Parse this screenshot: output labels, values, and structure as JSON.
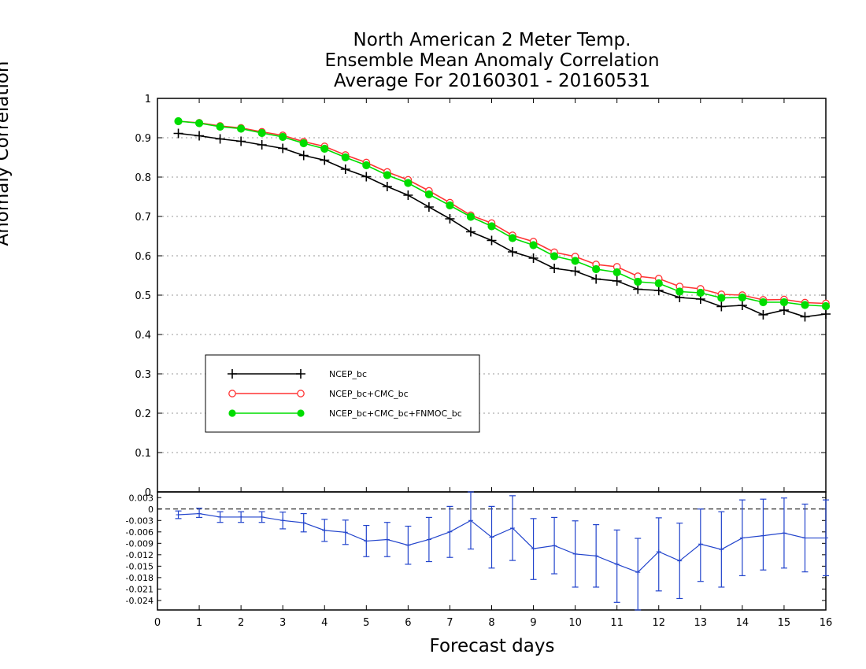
{
  "chart_data": {
    "type": "line",
    "title_lines": [
      "North American 2 Meter Temp.",
      "Ensemble Mean Anomaly Correlation",
      "Average For 20160301 - 20160531"
    ],
    "xlabel": "Forecast days",
    "ylabel": "Anomaly Correlation",
    "xlim": [
      0,
      16
    ],
    "x_ticks": [
      "0",
      "1",
      "2",
      "3",
      "4",
      "5",
      "6",
      "7",
      "8",
      "9",
      "10",
      "11",
      "12",
      "13",
      "14",
      "15",
      "16"
    ],
    "ylim": [
      0,
      1
    ],
    "y_ticks": [
      "0",
      "0.1",
      "0.2",
      "0.3",
      "0.4",
      "0.5",
      "0.6",
      "0.7",
      "0.8",
      "0.9",
      "1"
    ],
    "grid": true,
    "legend_position": "left",
    "x": [
      0.5,
      1,
      1.5,
      2,
      2.5,
      3,
      3.5,
      4,
      4.5,
      5,
      5.5,
      6,
      6.5,
      7,
      7.5,
      8,
      8.5,
      9,
      9.5,
      10,
      10.5,
      11,
      11.5,
      12,
      12.5,
      13,
      13.5,
      14,
      14.5,
      15,
      15.5,
      16
    ],
    "series": [
      {
        "name": "NCEP_bc",
        "color": "#000000",
        "marker": "plus",
        "values": [
          0.911,
          0.905,
          0.897,
          0.891,
          0.882,
          0.873,
          0.855,
          0.843,
          0.82,
          0.801,
          0.776,
          0.754,
          0.724,
          0.694,
          0.661,
          0.639,
          0.61,
          0.594,
          0.568,
          0.561,
          0.541,
          0.536,
          0.515,
          0.512,
          0.494,
          0.49,
          0.471,
          0.474,
          0.45,
          0.462,
          0.445,
          0.452
        ]
      },
      {
        "name": "NCEP_bc+CMC_bc",
        "color": "#ff3333",
        "marker": "open-circle",
        "values": [
          0.942,
          0.938,
          0.93,
          0.925,
          0.915,
          0.906,
          0.89,
          0.878,
          0.856,
          0.837,
          0.813,
          0.793,
          0.765,
          0.735,
          0.703,
          0.683,
          0.652,
          0.636,
          0.609,
          0.598,
          0.578,
          0.572,
          0.548,
          0.542,
          0.522,
          0.516,
          0.502,
          0.5,
          0.488,
          0.489,
          0.481,
          0.479
        ]
      },
      {
        "name": "NCEP_bc+CMC_bc+FNMOC_bc",
        "color": "#00dd00",
        "marker": "filled-circle",
        "values": [
          0.942,
          0.937,
          0.928,
          0.923,
          0.912,
          0.902,
          0.886,
          0.872,
          0.85,
          0.83,
          0.805,
          0.785,
          0.756,
          0.728,
          0.699,
          0.675,
          0.645,
          0.627,
          0.599,
          0.587,
          0.566,
          0.558,
          0.534,
          0.53,
          0.509,
          0.506,
          0.493,
          0.494,
          0.482,
          0.482,
          0.475,
          0.472
        ]
      }
    ],
    "difference_panel": {
      "type": "line-with-errorbars",
      "color": "#2244cc",
      "ylim": [
        -0.0265,
        0.0045
      ],
      "y_ticks": [
        "0.003",
        "0",
        "-0.003",
        "-0.006",
        "-0.009",
        "-0.012",
        "-0.015",
        "-0.018",
        "-0.021",
        "-0.024"
      ],
      "values": [
        -0.0015,
        -0.0012,
        -0.0021,
        -0.0021,
        -0.0021,
        -0.003,
        -0.0036,
        -0.0056,
        -0.0061,
        -0.0084,
        -0.008,
        -0.0095,
        -0.008,
        -0.006,
        -0.003,
        -0.0074,
        -0.005,
        -0.0104,
        -0.0096,
        -0.0118,
        -0.0123,
        -0.0145,
        -0.0166,
        -0.0112,
        -0.0136,
        -0.0092,
        -0.0106,
        -0.0076,
        -0.007,
        -0.0063,
        -0.0076,
        -0.0076
      ],
      "err_low": [
        -0.0025,
        -0.0022,
        -0.0035,
        -0.0035,
        -0.0035,
        -0.0052,
        -0.006,
        -0.0085,
        -0.0093,
        -0.0125,
        -0.0125,
        -0.0145,
        -0.0138,
        -0.0127,
        -0.0105,
        -0.0155,
        -0.0135,
        -0.0185,
        -0.017,
        -0.0205,
        -0.0205,
        -0.0245,
        -0.0265,
        -0.0215,
        -0.0235,
        -0.019,
        -0.0205,
        -0.0175,
        -0.016,
        -0.0155,
        -0.0165,
        -0.0175
      ],
      "err_high": [
        -0.0005,
        0.0002,
        -0.0007,
        -0.0007,
        -0.0007,
        -0.0008,
        -0.0012,
        -0.0027,
        -0.0029,
        -0.0043,
        -0.0035,
        -0.0045,
        -0.0022,
        0.0007,
        0.0045,
        0.0007,
        0.0035,
        -0.0025,
        -0.0022,
        -0.0031,
        -0.0041,
        -0.0055,
        -0.0077,
        -0.0023,
        -0.0037,
        0.0,
        -0.0007,
        0.0024,
        0.0026,
        0.0029,
        0.0013,
        0.0024
      ]
    }
  }
}
